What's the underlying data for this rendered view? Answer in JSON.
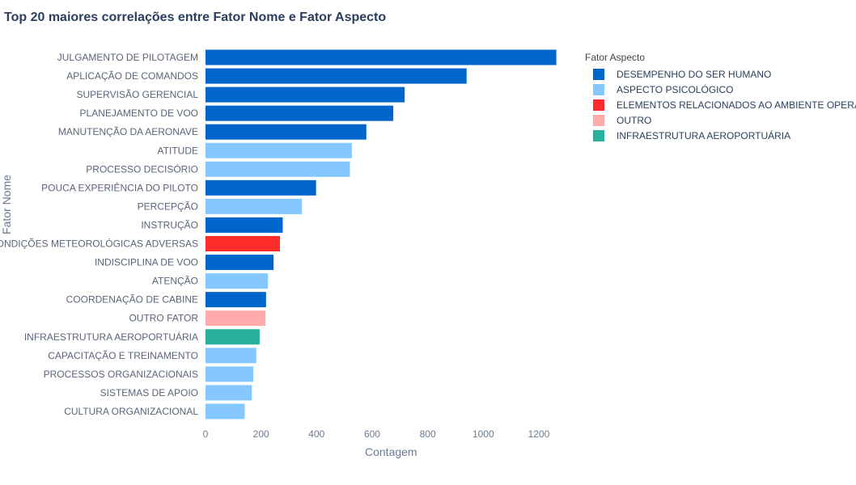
{
  "chart_data": {
    "type": "bar",
    "orientation": "horizontal",
    "title": "Top 20 maiores correlações entre Fator Nome e Fator Aspecto",
    "xlabel": "Contagem",
    "ylabel": "Fator Nome",
    "xlim": [
      0,
      1270
    ],
    "xticks": [
      0,
      200,
      400,
      600,
      800,
      1000,
      1200
    ],
    "grid": false,
    "legend_title": "Fator Aspecto",
    "legend_position": "right",
    "categories": [
      "JULGAMENTO DE PILOTAGEM",
      "APLICAÇÃO DE COMANDOS",
      "SUPERVISÃO GERENCIAL",
      "PLANEJAMENTO DE VOO",
      "MANUTENÇÃO DA AERONAVE",
      "ATITUDE",
      "PROCESSO DECISÓRIO",
      "POUCA EXPERIÊNCIA DO PILOTO",
      "PERCEPÇÃO",
      "INSTRUÇÃO",
      "CONDIÇÕES METEOROLÓGICAS ADVERSAS",
      "INDISCIPLINA DE VOO",
      "ATENÇÃO",
      "COORDENAÇÃO DE CABINE",
      "OUTRO FATOR",
      "INFRAESTRUTURA AEROPORTUÁRIA",
      "CAPACITAÇÃO E TREINAMENTO",
      "PROCESSOS ORGANIZACIONAIS",
      "SISTEMAS DE APOIO",
      "CULTURA ORGANIZACIONAL"
    ],
    "values": [
      1263,
      940,
      717,
      676,
      579,
      527,
      520,
      398,
      347,
      278,
      268,
      245,
      225,
      218,
      216,
      195,
      183,
      172,
      167,
      141
    ],
    "aspect_index": [
      0,
      0,
      0,
      0,
      0,
      1,
      1,
      0,
      1,
      0,
      2,
      0,
      1,
      0,
      3,
      4,
      1,
      1,
      1,
      1
    ],
    "series": [
      {
        "name": "DESEMPENHO DO SER HUMANO",
        "color": "#0066cc"
      },
      {
        "name": "ASPECTO PSICOLÓGICO",
        "color": "#85c8ff"
      },
      {
        "name": "ELEMENTOS RELACIONADOS AO AMBIENTE OPERACIONAL",
        "color": "#ff2b2b"
      },
      {
        "name": "OUTRO",
        "color": "#ffabab"
      },
      {
        "name": "INFRAESTRUTURA AEROPORTUÁRIA",
        "color": "#29b09d"
      }
    ]
  }
}
